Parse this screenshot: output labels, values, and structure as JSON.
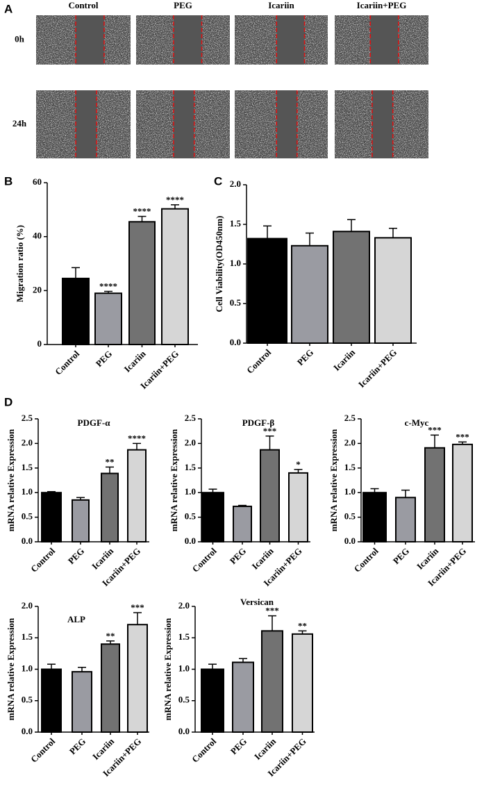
{
  "panels": [
    "A",
    "B",
    "C",
    "D"
  ],
  "panel_a": {
    "columns": [
      "Control",
      "PEG",
      "Icariin",
      "Icariin+PEG"
    ],
    "rows": [
      "0h",
      "24h"
    ]
  },
  "chart_data": [
    {
      "type": "bar",
      "y_label": "Migration ratio (%)",
      "categories": [
        "Control",
        "PEG",
        "Icariin",
        "Icariin+PEG"
      ],
      "values": [
        24.5,
        19,
        45.5,
        50.3
      ],
      "errors": [
        4,
        0.7,
        2,
        1.5
      ],
      "annotations": [
        null,
        "****",
        "****",
        "****"
      ],
      "colors": [
        "#000000",
        "#9a9ba2",
        "#727272",
        "#d6d6d6"
      ],
      "ylim": [
        0,
        60
      ],
      "yticks": [
        0,
        20,
        40,
        60
      ]
    },
    {
      "type": "bar",
      "y_label": "Cell Viability(OD450nm)",
      "categories": [
        "Control",
        "PEG",
        "Icariin",
        "Icariin+PEG"
      ],
      "values": [
        1.32,
        1.23,
        1.41,
        1.33
      ],
      "errors": [
        0.16,
        0.16,
        0.15,
        0.12
      ],
      "colors": [
        "#000000",
        "#9a9ba2",
        "#727272",
        "#d6d6d6"
      ],
      "ylim": [
        0,
        2
      ],
      "yticks": [
        {
          "value": 0,
          "label": "0.0"
        },
        {
          "value": 0.5,
          "label": "0.5"
        },
        {
          "value": 1,
          "label": "1.0"
        },
        {
          "value": 1.5,
          "label": "1.5"
        },
        {
          "value": 2,
          "label": "2.0"
        }
      ]
    },
    {
      "type": "bar",
      "title": "PDGF-α",
      "y_label": "mRNA relative Expression",
      "categories": [
        "Control",
        "PEG",
        "Icariin",
        "Icariin+PEG"
      ],
      "values": [
        1.0,
        0.85,
        1.39,
        1.87
      ],
      "errors": [
        0.02,
        0.05,
        0.13,
        0.13
      ],
      "annotations": [
        null,
        null,
        "**",
        "****"
      ],
      "colors": [
        "#000000",
        "#9a9ba2",
        "#727272",
        "#d6d6d6"
      ],
      "ylim": [
        0,
        2.5
      ],
      "yticks": [
        {
          "value": 0,
          "label": "0.0"
        },
        {
          "value": 0.5,
          "label": "0.5"
        },
        {
          "value": 1,
          "label": "1.0"
        },
        {
          "value": 1.5,
          "label": "1.5"
        },
        {
          "value": 2,
          "label": "2.0"
        },
        {
          "value": 2.5,
          "label": "2.5"
        }
      ]
    },
    {
      "type": "bar",
      "title": "PDGF-β",
      "y_label": "mRNA relative Expression",
      "categories": [
        "Control",
        "PEG",
        "Icariin",
        "Icariin+PEG"
      ],
      "values": [
        1.0,
        0.72,
        1.87,
        1.4
      ],
      "errors": [
        0.07,
        0.02,
        0.28,
        0.07
      ],
      "annotations": [
        null,
        null,
        "***",
        "*"
      ],
      "colors": [
        "#000000",
        "#9a9ba2",
        "#727272",
        "#d6d6d6"
      ],
      "ylim": [
        0,
        2.5
      ],
      "yticks": [
        {
          "value": 0,
          "label": "0.0"
        },
        {
          "value": 0.5,
          "label": "0.5"
        },
        {
          "value": 1,
          "label": "1.0"
        },
        {
          "value": 1.5,
          "label": "1.5"
        },
        {
          "value": 2,
          "label": "2.0"
        },
        {
          "value": 2.5,
          "label": "2.5"
        }
      ]
    },
    {
      "type": "bar",
      "title": "c-Myc",
      "y_label": "mRNA relative Expression",
      "categories": [
        "Control",
        "PEG",
        "Icariin",
        "Icariin+PEG"
      ],
      "values": [
        1.0,
        0.9,
        1.91,
        1.98
      ],
      "errors": [
        0.08,
        0.15,
        0.26,
        0.05
      ],
      "annotations": [
        null,
        null,
        "***",
        "***"
      ],
      "colors": [
        "#000000",
        "#9a9ba2",
        "#727272",
        "#d6d6d6"
      ],
      "ylim": [
        0,
        2.5
      ],
      "yticks": [
        {
          "value": 0,
          "label": "0.0"
        },
        {
          "value": 0.5,
          "label": "0.5"
        },
        {
          "value": 1,
          "label": "1.0"
        },
        {
          "value": 1.5,
          "label": "1.5"
        },
        {
          "value": 2,
          "label": "2.0"
        },
        {
          "value": 2.5,
          "label": "2.5"
        }
      ]
    },
    {
      "type": "bar",
      "title": "ALP",
      "y_label": "mRNA relative Expression",
      "categories": [
        "Control",
        "PEG",
        "Icariin",
        "Icariin+PEG"
      ],
      "values": [
        1.0,
        0.96,
        1.4,
        1.71
      ],
      "errors": [
        0.08,
        0.07,
        0.05,
        0.19
      ],
      "annotations": [
        null,
        null,
        "**",
        "***"
      ],
      "colors": [
        "#000000",
        "#9a9ba2",
        "#727272",
        "#d6d6d6"
      ],
      "ylim": [
        0,
        2
      ],
      "yticks": [
        {
          "value": 0,
          "label": "0.0"
        },
        {
          "value": 0.5,
          "label": "0.5"
        },
        {
          "value": 1,
          "label": "1.0"
        },
        {
          "value": 1.5,
          "label": "1.5"
        },
        {
          "value": 2,
          "label": "2.0"
        }
      ]
    },
    {
      "type": "bar",
      "title": "Versican",
      "y_label": "mRNA relative Expression",
      "categories": [
        "Control",
        "PEG",
        "Icariin",
        "Icariin+PEG"
      ],
      "values": [
        1.0,
        1.11,
        1.61,
        1.56
      ],
      "errors": [
        0.08,
        0.06,
        0.24,
        0.05
      ],
      "annotations": [
        null,
        null,
        "***",
        "**"
      ],
      "colors": [
        "#000000",
        "#9a9ba2",
        "#727272",
        "#d6d6d6"
      ],
      "ylim": [
        0,
        2
      ],
      "yticks": [
        {
          "value": 0,
          "label": "0.0"
        },
        {
          "value": 0.5,
          "label": "0.5"
        },
        {
          "value": 1,
          "label": "1.0"
        },
        {
          "value": 1.5,
          "label": "1.5"
        },
        {
          "value": 2,
          "label": "2.0"
        }
      ]
    }
  ]
}
